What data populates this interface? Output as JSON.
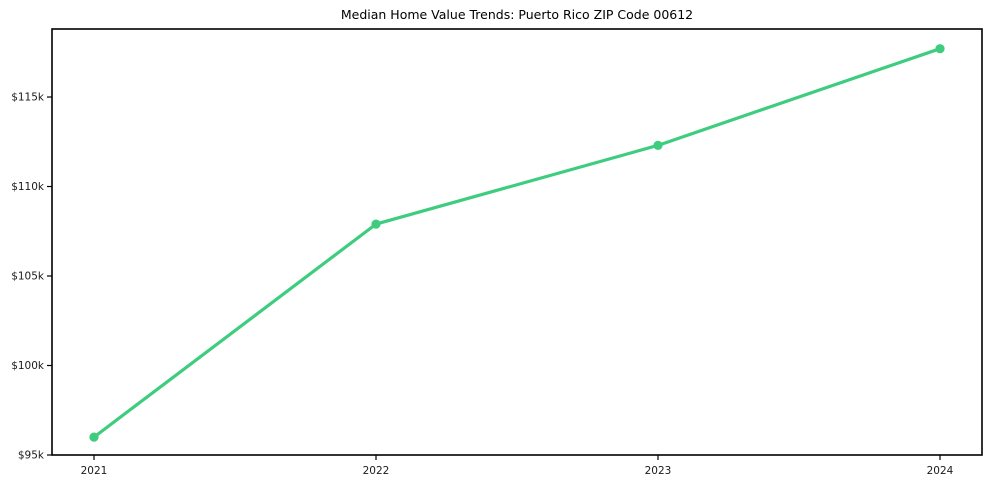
{
  "figure": {
    "background": "#ffffff",
    "axis_color": "#000000",
    "tick_label_color": "#1a1a1a"
  },
  "chart_data": {
    "type": "line",
    "title": "Median Home Value Trends: Puerto Rico ZIP Code 00612",
    "categories": [
      "2021",
      "2022",
      "2023",
      "2024"
    ],
    "series": [
      {
        "values": [
          96000,
          107900,
          112300,
          117700
        ],
        "color": "#3ecd7e",
        "marker": "circle"
      }
    ],
    "xlabel": "",
    "ylabel": "",
    "ylim": [
      95000,
      118800
    ],
    "yticks": [
      {
        "value": 95000,
        "label": "$95k"
      },
      {
        "value": 100000,
        "label": "$100k"
      },
      {
        "value": 105000,
        "label": "$105k"
      },
      {
        "value": 110000,
        "label": "$110k"
      },
      {
        "value": 115000,
        "label": "$115k"
      }
    ],
    "grid": false,
    "legend": "none"
  }
}
